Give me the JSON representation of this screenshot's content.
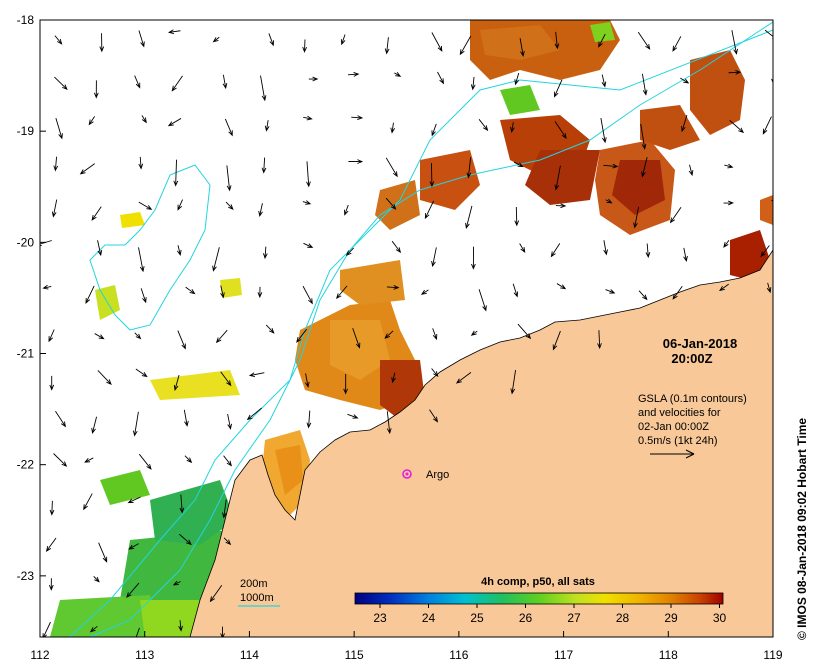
{
  "map": {
    "lon_ticks": [
      "112",
      "113",
      "114",
      "115",
      "116",
      "117",
      "118",
      "119"
    ],
    "lat_ticks": [
      "-18",
      "-19",
      "-20",
      "-21",
      "-22",
      "-23"
    ],
    "lon_range": [
      112,
      119
    ],
    "lat_range": [
      -23.55,
      -18
    ],
    "date": "06-Jan-2018",
    "time": "20:00Z",
    "gsla_lines": [
      "GSLA (0.1m contours)",
      "and velocities for",
      "02-Jan 00:00Z",
      "0.5m/s (1kt 24h)"
    ],
    "argo_label": "Argo",
    "legend_200": "200m",
    "legend_1000": "1000m",
    "colorbar_title": "4h comp, p50, all sats",
    "colorbar_ticks": [
      "23",
      "24",
      "25",
      "26",
      "27",
      "28",
      "29",
      "30"
    ],
    "credit": "© IMOS 08-Jan-2018 09:02 Hobart Time",
    "colors": {
      "land": "#f8c898",
      "contour": "#22d4e0",
      "argo": "#e020e0",
      "sst_colormap": [
        "#000080",
        "#0030c0",
        "#0080e0",
        "#00c0d0",
        "#20c060",
        "#60d020",
        "#c0e020",
        "#f0e000",
        "#f0b000",
        "#e08000",
        "#c84000",
        "#a00000"
      ]
    }
  }
}
